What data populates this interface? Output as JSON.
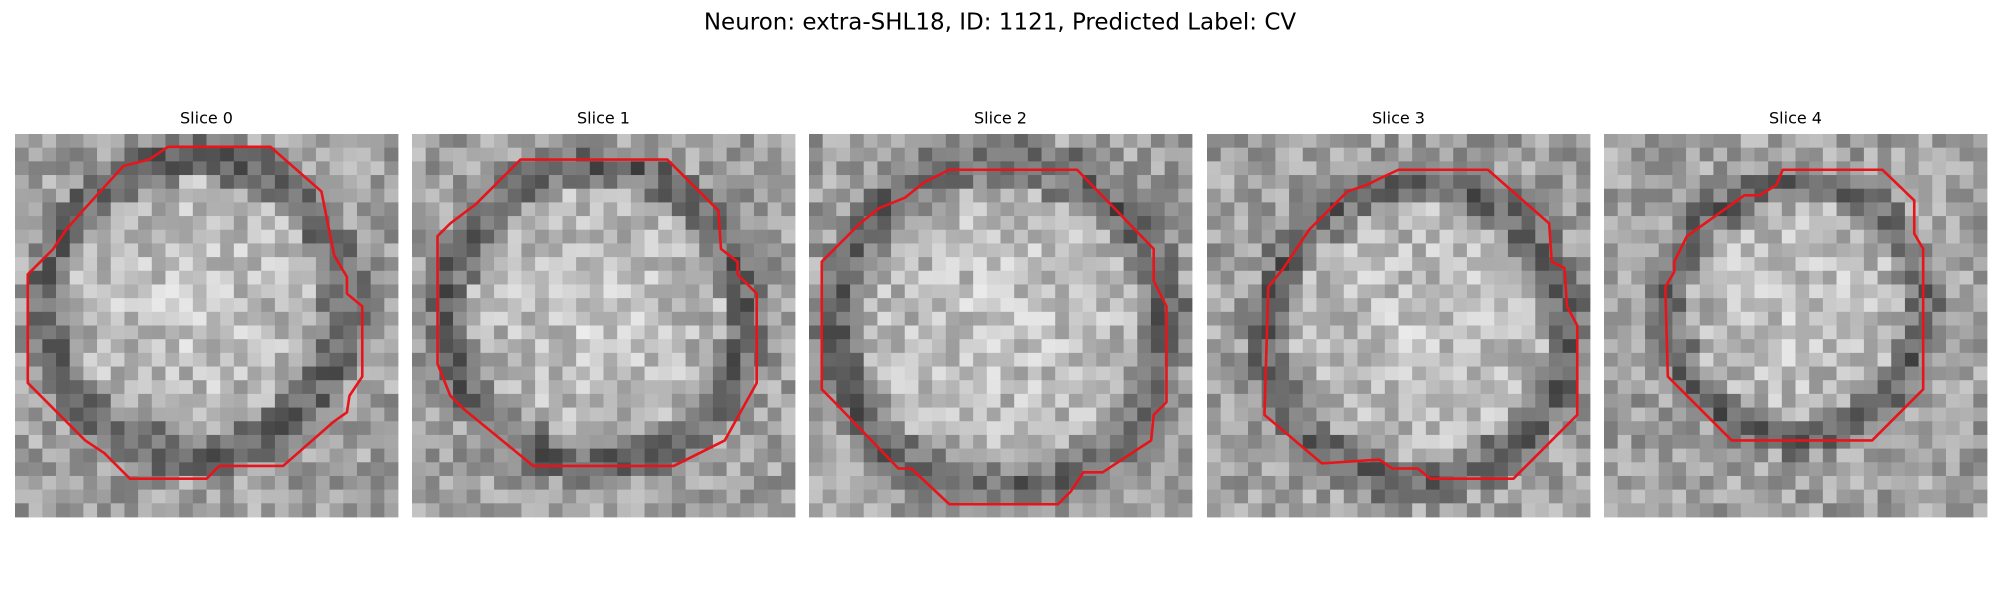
{
  "title": "Neuron: extra-SHL18, ID: 1121, Predicted Label: CV",
  "panels": [
    {
      "title": "Slice 0"
    },
    {
      "title": "Slice 1"
    },
    {
      "title": "Slice 2"
    },
    {
      "title": "Slice 3"
    },
    {
      "title": "Slice 4"
    }
  ]
}
